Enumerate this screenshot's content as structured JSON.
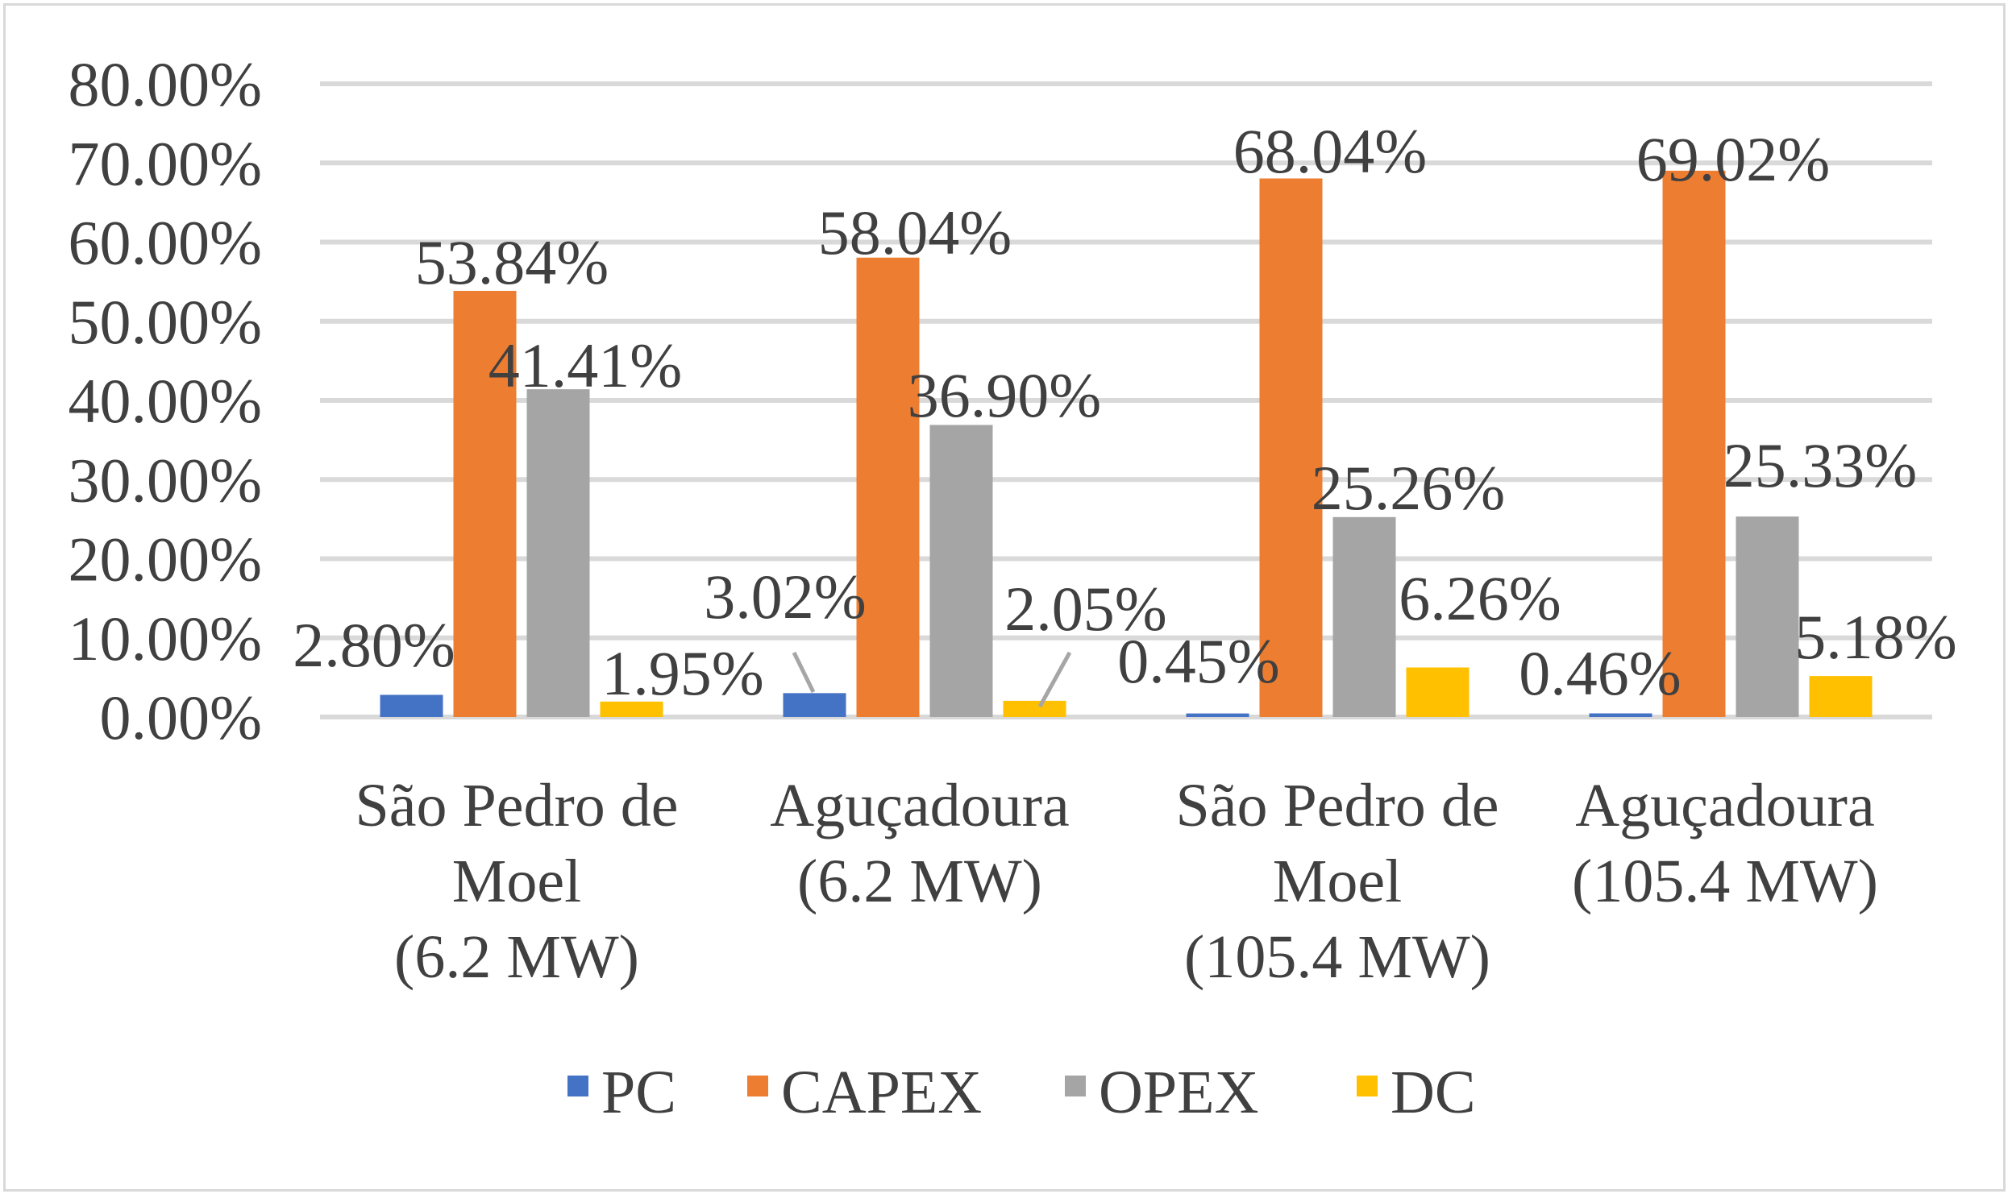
{
  "chart_data": {
    "type": "bar",
    "title": "",
    "xlabel": "",
    "ylabel": "",
    "ylim": [
      0,
      80
    ],
    "y_tick_values": [
      0,
      10,
      20,
      30,
      40,
      50,
      60,
      70,
      80
    ],
    "y_tick_labels": [
      "0.00%",
      "10.00%",
      "20.00%",
      "30.00%",
      "40.00%",
      "50.00%",
      "60.00%",
      "70.00%",
      "80.00%"
    ],
    "grid": true,
    "legend_position": "bottom",
    "categories": [
      [
        "São Pedro de",
        "Moel",
        "(6.2 MW)"
      ],
      [
        "Aguçadoura",
        "(6.2 MW)"
      ],
      [
        "São Pedro de",
        "Moel",
        "(105.4 MW)"
      ],
      [
        "Aguçadoura",
        "(105.4 MW)"
      ]
    ],
    "series": [
      {
        "name": "PC",
        "color": "#4472c4",
        "values": [
          2.8,
          3.02,
          0.45,
          0.46
        ],
        "labels": [
          "2.80%",
          "3.02%",
          "0.45%",
          "0.46%"
        ]
      },
      {
        "name": "CAPEX",
        "color": "#ed7d31",
        "values": [
          53.84,
          58.04,
          68.04,
          69.02
        ],
        "labels": [
          "53.84%",
          "58.04%",
          "68.04%",
          "69.02%"
        ]
      },
      {
        "name": "OPEX",
        "color": "#a5a5a5",
        "values": [
          41.41,
          36.9,
          25.26,
          25.33
        ],
        "labels": [
          "41.41%",
          "36.90%",
          "25.26%",
          "25.33%"
        ]
      },
      {
        "name": "DC",
        "color": "#ffc000",
        "values": [
          1.95,
          2.05,
          6.26,
          5.18
        ],
        "labels": [
          "1.95%",
          "2.05%",
          "6.26%",
          "5.18%"
        ]
      }
    ]
  }
}
